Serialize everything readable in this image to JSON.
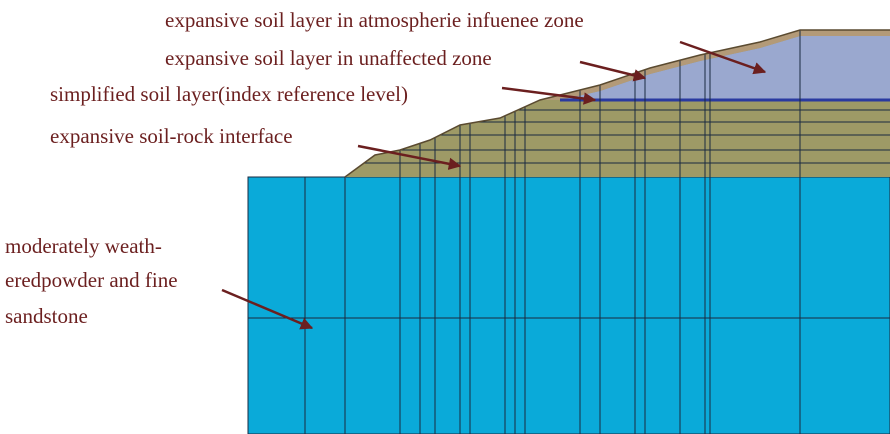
{
  "labels": [
    {
      "text": "expansive soil layer in atmospherie infuenee zone"
    },
    {
      "text": "expansive soil layer in unaffected zone"
    },
    {
      "text": "simplified soil layer(index reference level)"
    },
    {
      "text": "expansive soil-rock interface"
    },
    {
      "lines": [
        "moderately weath-",
        "eredpowder and fine",
        "sandstone"
      ]
    }
  ]
}
